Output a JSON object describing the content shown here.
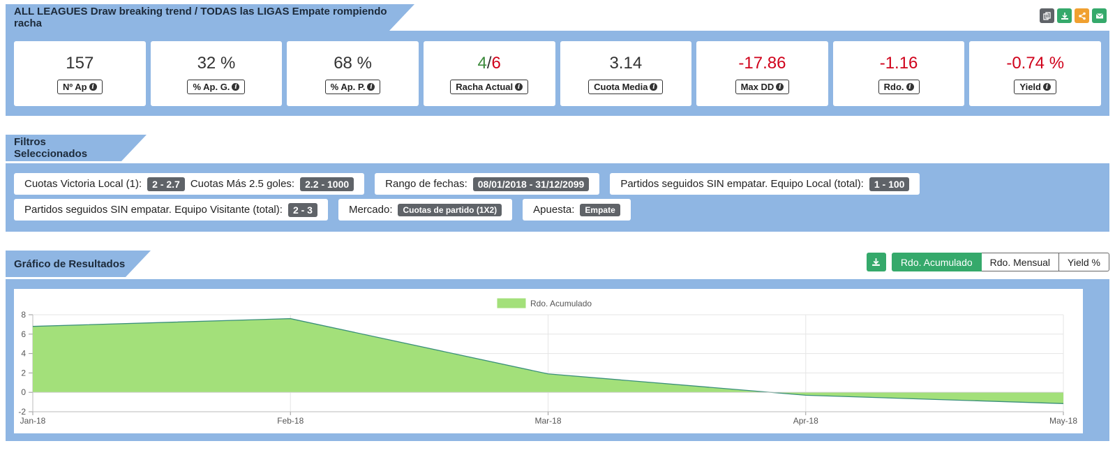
{
  "header": {
    "title": "ALL LEAGUES Draw breaking trend / TODAS las LIGAS Empate rompiendo racha",
    "actions": [
      {
        "name": "copy-button",
        "icon": "copy-icon",
        "color": "#5f6368"
      },
      {
        "name": "download-button",
        "icon": "download-icon",
        "color": "#35a96b"
      },
      {
        "name": "share-button",
        "icon": "share-icon",
        "color": "#f0a030"
      },
      {
        "name": "email-button",
        "icon": "envelope-icon",
        "color": "#35a96b"
      }
    ]
  },
  "stats": [
    {
      "value": "157",
      "label": "Nº Ap",
      "tone": "neutral"
    },
    {
      "value": "32 %",
      "label": "% Ap. G.",
      "tone": "neutral"
    },
    {
      "value": "68 %",
      "label": "% Ap. P.",
      "tone": "neutral"
    },
    {
      "value_green": "4",
      "separator": "/",
      "value_red": "6",
      "label": "Racha Actual",
      "tone": "split"
    },
    {
      "value": "3.14",
      "label": "Cuota Media",
      "tone": "neutral"
    },
    {
      "value": "-17.86",
      "label": "Max DD",
      "tone": "negative"
    },
    {
      "value": "-1.16",
      "label": "Rdo.",
      "tone": "negative"
    },
    {
      "value": "-0.74 %",
      "label": "Yield",
      "tone": "negative"
    }
  ],
  "filters": {
    "title": "Filtros Seleccionados",
    "row1": {
      "box1": {
        "label_a": "Cuotas Victoria Local (1):",
        "value_a": "2 - 2.7",
        "label_b": "Cuotas Más 2.5 goles:",
        "value_b": "2.2 - 1000"
      },
      "box2": {
        "label": "Rango de fechas:",
        "value": "08/01/2018 - 31/12/2099"
      },
      "box3": {
        "label": "Partidos seguidos SIN empatar. Equipo Local (total):",
        "value": "1 - 100"
      }
    },
    "row2": {
      "box1": {
        "label": "Partidos seguidos SIN empatar. Equipo Visitante (total):",
        "value": "2 - 3"
      },
      "box2": {
        "label": "Mercado:",
        "value": "Cuotas de partido (1X2)"
      },
      "box3": {
        "label": "Apuesta:",
        "value": "Empate"
      }
    }
  },
  "chart_section": {
    "title": "Gráfico de Resultados",
    "buttons": {
      "acumulado": "Rdo. Acumulado",
      "mensual": "Rdo. Mensual",
      "yield": "Yield %"
    },
    "active": "acumulado"
  },
  "chart_data": {
    "type": "area",
    "x": [
      "Jan-18",
      "Feb-18",
      "Mar-18",
      "Apr-18",
      "May-18"
    ],
    "series": [
      {
        "name": "Rdo. Acumulado",
        "values": [
          6.8,
          7.6,
          1.9,
          -0.3,
          -1.16
        ]
      }
    ],
    "ylim": [
      -2,
      8
    ],
    "yticks": [
      -2,
      0,
      2,
      4,
      6,
      8
    ],
    "legend": "top-center",
    "grid": true,
    "fill_color": "#a3e07a",
    "line_color": "#3a8f7a"
  }
}
